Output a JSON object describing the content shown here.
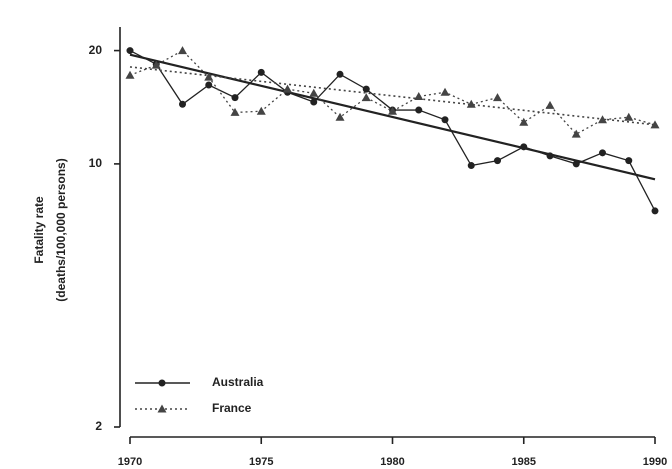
{
  "chart_data": {
    "type": "line",
    "y_label": [
      "Fatality rate",
      "(deaths/100,000 persons)"
    ],
    "x": [
      1970,
      1971,
      1972,
      1973,
      1974,
      1975,
      1976,
      1977,
      1978,
      1979,
      1980,
      1981,
      1982,
      1983,
      1984,
      1985,
      1986,
      1987,
      1988,
      1989,
      1990
    ],
    "series": [
      {
        "name": "Australia",
        "color": "#222222",
        "marker": "circle",
        "dash": "solid",
        "values": [
          20,
          18.4,
          14.4,
          16.2,
          15,
          17.5,
          15.5,
          14.6,
          17.3,
          15.8,
          13.9,
          13.9,
          13.1,
          9.9,
          10.2,
          11.1,
          10.5,
          10,
          10.7,
          10.2,
          7.5
        ],
        "trend": [
          19.5,
          9.1
        ]
      },
      {
        "name": "France",
        "color": "#444444",
        "marker": "triangle",
        "dash": "dotted",
        "values": [
          17.2,
          18.3,
          20,
          17,
          13.7,
          13.8,
          15.8,
          15.4,
          13.3,
          15,
          13.8,
          15.1,
          15.5,
          14.4,
          15,
          12.9,
          14.3,
          12,
          13.1,
          13.3,
          12.7
        ],
        "trend": [
          18.1,
          12.7
        ]
      }
    ],
    "xlim": [
      1970,
      1990
    ],
    "xticks": [
      1970,
      1975,
      1980,
      1985,
      1990
    ],
    "ylim": [
      2,
      22
    ],
    "yticks": [
      2,
      10,
      20
    ],
    "log_y": true,
    "legend": "lower left"
  }
}
